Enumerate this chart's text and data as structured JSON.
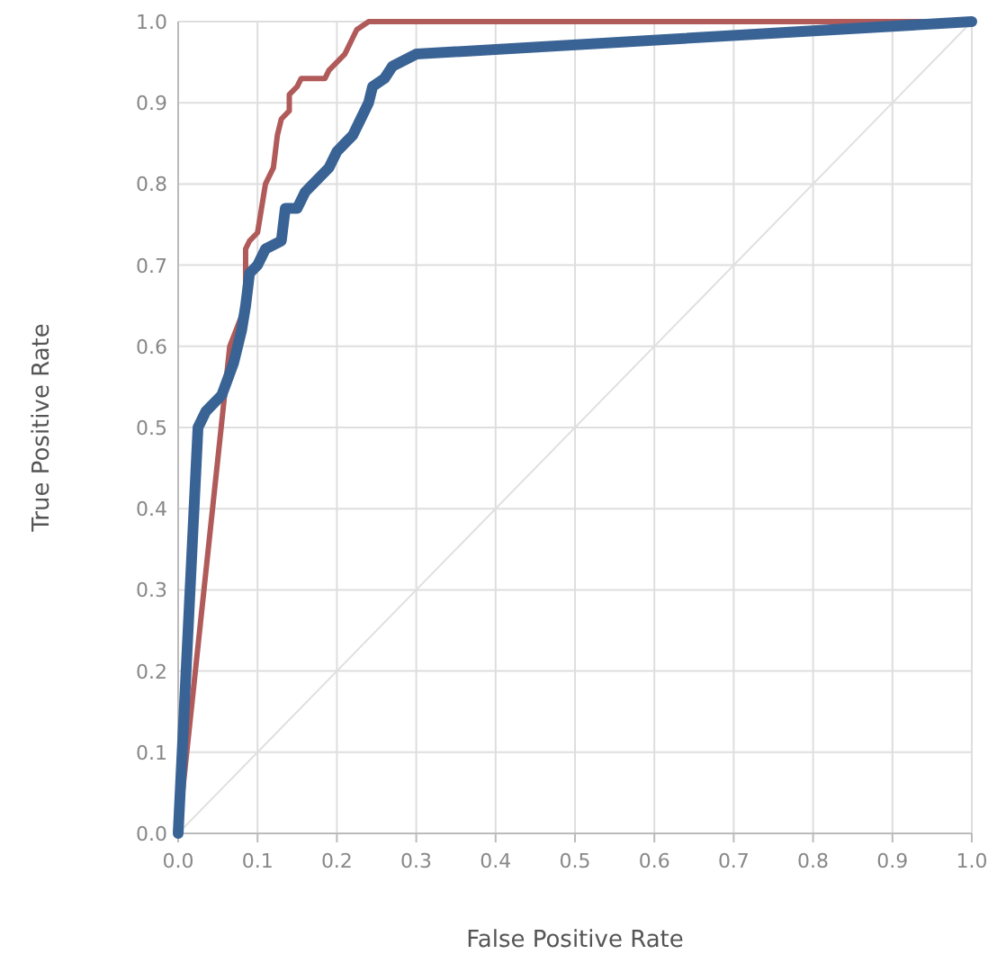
{
  "chart_data": {
    "type": "line",
    "xlabel": "False Positive Rate",
    "ylabel": "True Positive Rate",
    "xlim": [
      0,
      1
    ],
    "ylim": [
      0,
      1
    ],
    "xticks": [
      {
        "value": 0,
        "label": "0.0"
      },
      0.1,
      0.2,
      0.3,
      0.4,
      0.5,
      0.6,
      0.7,
      0.8,
      0.9,
      {
        "value": 1,
        "label": "1.0"
      }
    ],
    "yticks": [
      {
        "value": 0,
        "label": "0.0"
      },
      0.1,
      0.2,
      0.3,
      0.4,
      0.5,
      0.6,
      0.7,
      0.8,
      0.9,
      {
        "value": 1,
        "label": "1.0"
      }
    ],
    "grid": true,
    "marker": "none",
    "line_style": "solid",
    "series": [
      {
        "color": "#e0e0e0",
        "x": [
          0,
          1
        ],
        "values": [
          0,
          1
        ]
      },
      {
        "color": "#b05a5a",
        "x": [
          0,
          0.065,
          0.085,
          0.085,
          0.09,
          0.1,
          0.105,
          0.11,
          0.12,
          0.125,
          0.13,
          0.14,
          0.14,
          0.15,
          0.155,
          0.185,
          0.19,
          0.2,
          0.21,
          0.22,
          0.225,
          0.24,
          1
        ],
        "values": [
          0,
          0.6,
          0.65,
          0.72,
          0.73,
          0.74,
          0.77,
          0.8,
          0.82,
          0.86,
          0.88,
          0.89,
          0.91,
          0.92,
          0.93,
          0.93,
          0.94,
          0.95,
          0.96,
          0.98,
          0.99,
          1,
          1
        ]
      },
      {
        "color": "#3a6395",
        "x": [
          0,
          0.025,
          0.035,
          0.055,
          0.07,
          0.08,
          0.085,
          0.09,
          0.1,
          0.11,
          0.13,
          0.135,
          0.15,
          0.16,
          0.17,
          0.18,
          0.19,
          0.2,
          0.21,
          0.22,
          0.23,
          0.24,
          0.245,
          0.26,
          0.27,
          0.3,
          1
        ],
        "values": [
          0,
          0.5,
          0.52,
          0.54,
          0.58,
          0.62,
          0.65,
          0.69,
          0.7,
          0.72,
          0.73,
          0.77,
          0.77,
          0.79,
          0.8,
          0.81,
          0.82,
          0.84,
          0.85,
          0.86,
          0.88,
          0.9,
          0.92,
          0.93,
          0.945,
          0.96,
          1
        ]
      }
    ]
  }
}
